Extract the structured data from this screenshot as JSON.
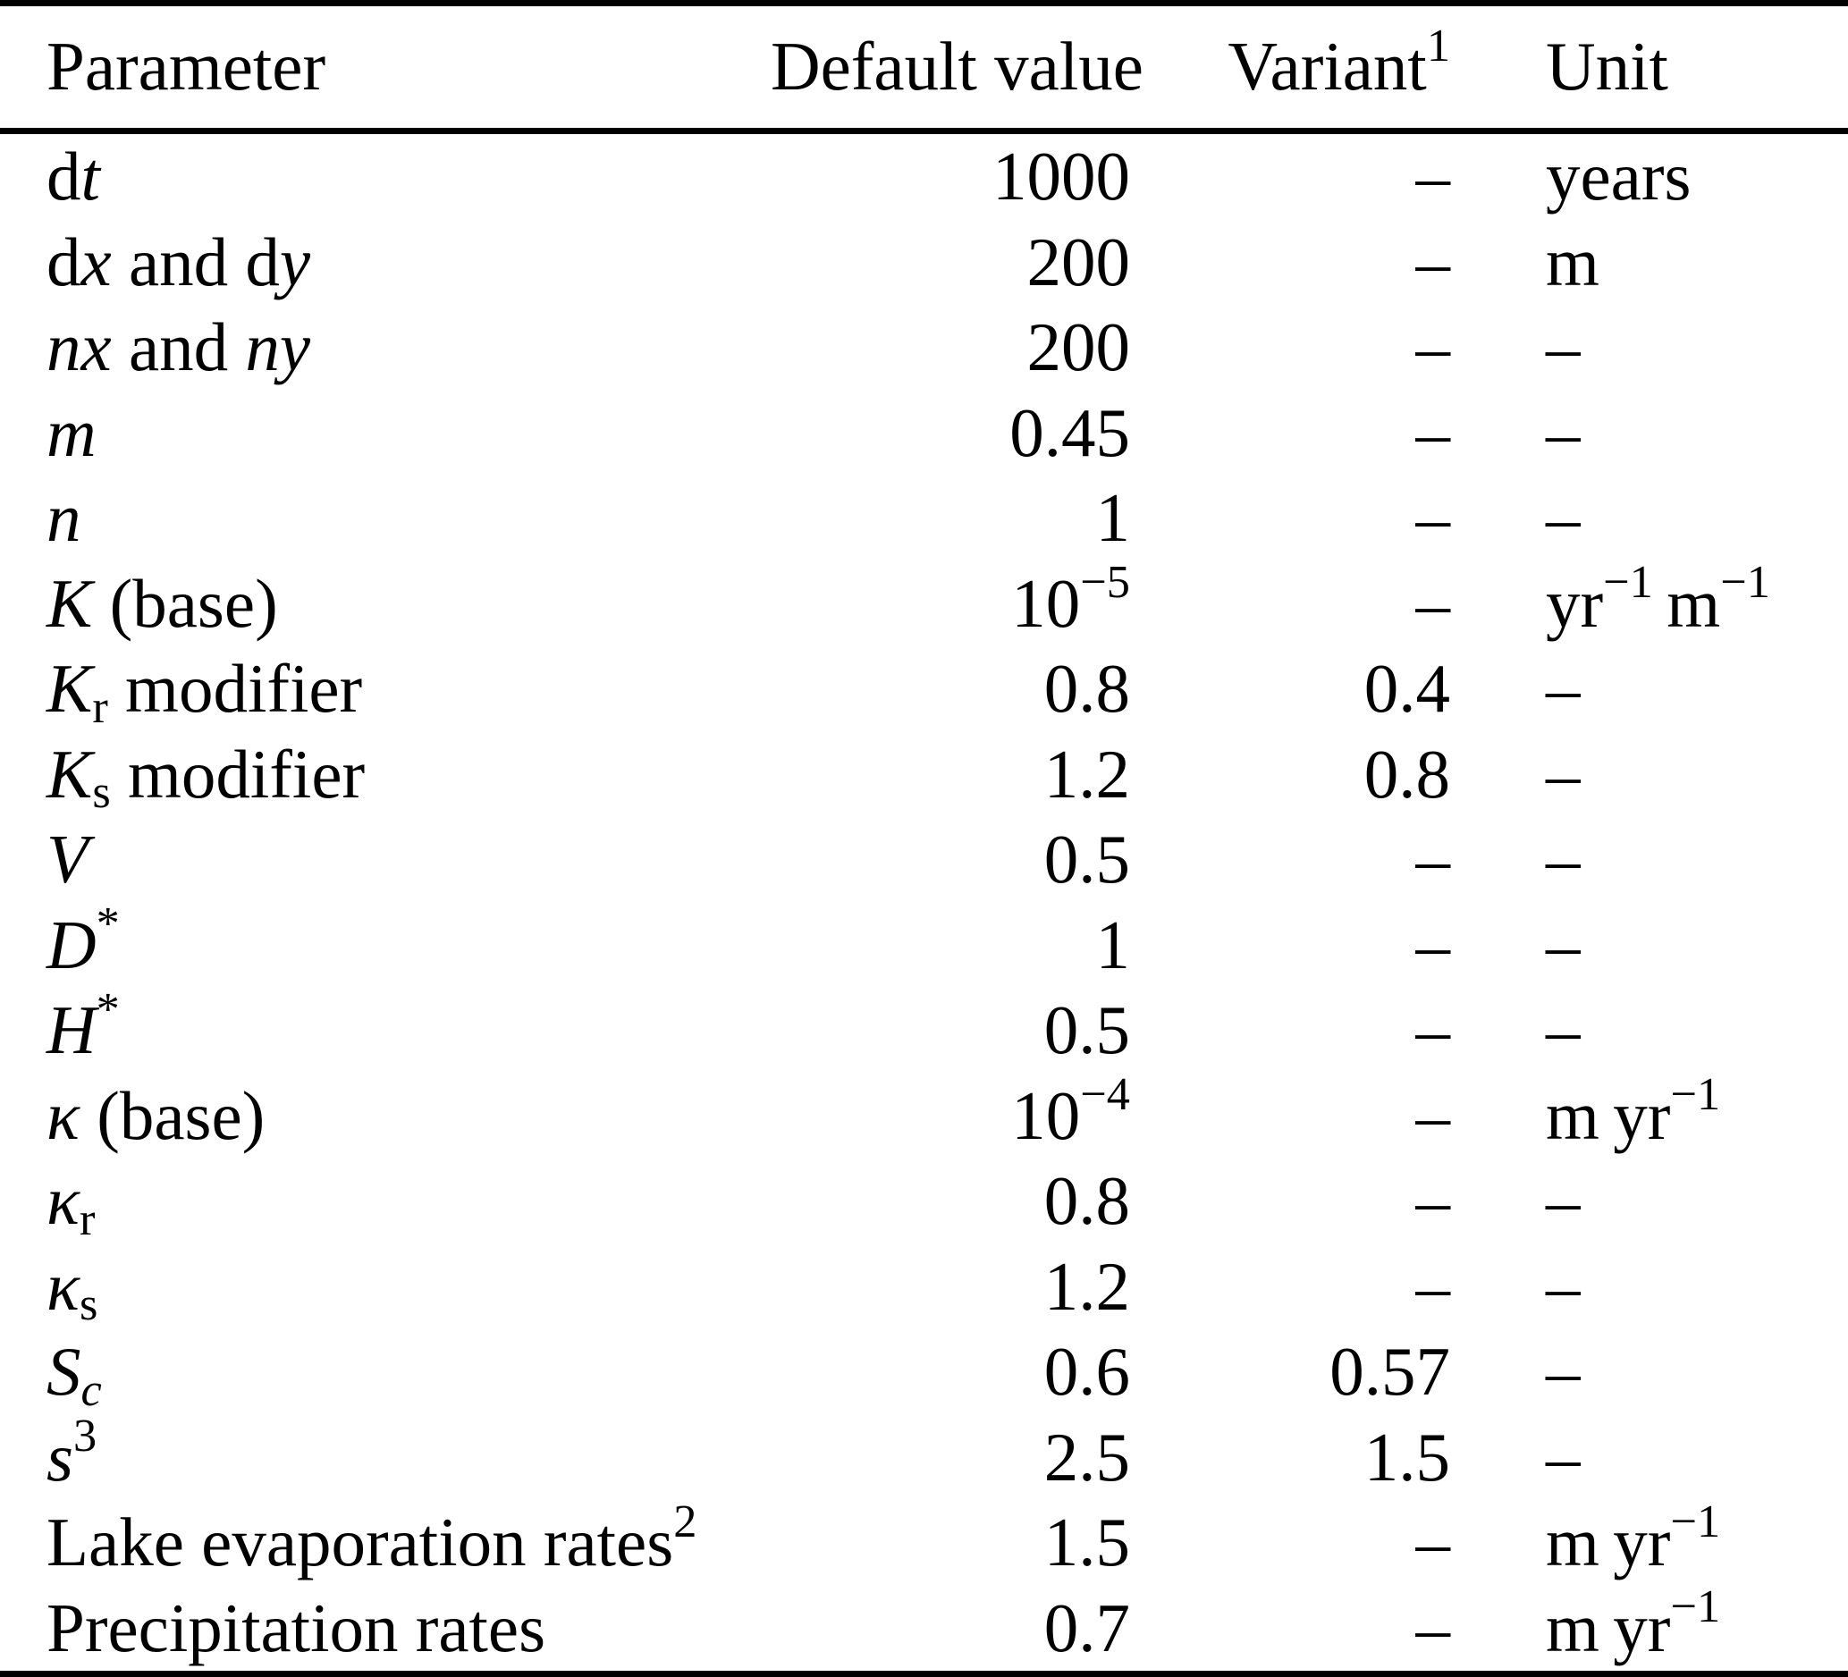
{
  "colors": {
    "text": "#000000",
    "rule": "#000000",
    "background": "#ffffff"
  },
  "table": {
    "header": {
      "parameter": "Parameter",
      "default_value": "Default value",
      "variant": "Variant",
      "variant_footnote": "1",
      "unit": "Unit"
    },
    "rows": [
      {
        "name": "dt",
        "cells": [
          [
            {
              "t": "d"
            },
            {
              "t": "t",
              "s": "i"
            }
          ],
          [
            {
              "t": "1000"
            }
          ],
          [
            {
              "t": "–"
            }
          ],
          [
            {
              "t": "years"
            }
          ]
        ]
      },
      {
        "name": "dx and dy",
        "cells": [
          [
            {
              "t": "d"
            },
            {
              "t": "x",
              "s": "i"
            },
            {
              "t": " and "
            },
            {
              "t": "d"
            },
            {
              "t": "y",
              "s": "i"
            }
          ],
          [
            {
              "t": "200"
            }
          ],
          [
            {
              "t": "–"
            }
          ],
          [
            {
              "t": "m"
            }
          ]
        ]
      },
      {
        "name": "nx and ny",
        "cells": [
          [
            {
              "t": "n",
              "s": "i"
            },
            {
              "t": "x",
              "s": "i"
            },
            {
              "t": " and "
            },
            {
              "t": "n",
              "s": "i"
            },
            {
              "t": "y",
              "s": "i"
            }
          ],
          [
            {
              "t": "200"
            }
          ],
          [
            {
              "t": "–"
            }
          ],
          [
            {
              "t": "–"
            }
          ]
        ]
      },
      {
        "name": "m",
        "cells": [
          [
            {
              "t": "m",
              "s": "i"
            }
          ],
          [
            {
              "t": "0.45"
            }
          ],
          [
            {
              "t": "–"
            }
          ],
          [
            {
              "t": "–"
            }
          ]
        ]
      },
      {
        "name": "n",
        "cells": [
          [
            {
              "t": "n",
              "s": "i"
            }
          ],
          [
            {
              "t": "1"
            }
          ],
          [
            {
              "t": "–"
            }
          ],
          [
            {
              "t": "–"
            }
          ]
        ]
      },
      {
        "name": "K (base)",
        "cells": [
          [
            {
              "t": "K",
              "s": "i"
            },
            {
              "t": " (base)"
            }
          ],
          [
            {
              "t": "10"
            },
            {
              "t": "−5",
              "s": "sup"
            }
          ],
          [
            {
              "t": "–"
            }
          ],
          [
            {
              "t": "yr"
            },
            {
              "t": "−1",
              "s": "sup"
            },
            {
              "t": " m"
            },
            {
              "t": "−1",
              "s": "sup"
            }
          ]
        ]
      },
      {
        "name": "Kr modifier",
        "cells": [
          [
            {
              "t": "K",
              "s": "i"
            },
            {
              "t": "r",
              "s": "sub"
            },
            {
              "t": " modifier"
            }
          ],
          [
            {
              "t": "0.8"
            }
          ],
          [
            {
              "t": "0.4"
            }
          ],
          [
            {
              "t": "–"
            }
          ]
        ]
      },
      {
        "name": "Ks modifier",
        "cells": [
          [
            {
              "t": "K",
              "s": "i"
            },
            {
              "t": "s",
              "s": "sub"
            },
            {
              "t": " modifier"
            }
          ],
          [
            {
              "t": "1.2"
            }
          ],
          [
            {
              "t": "0.8"
            }
          ],
          [
            {
              "t": "–"
            }
          ]
        ]
      },
      {
        "name": "V",
        "cells": [
          [
            {
              "t": "V",
              "s": "i"
            }
          ],
          [
            {
              "t": "0.5"
            }
          ],
          [
            {
              "t": "–"
            }
          ],
          [
            {
              "t": "–"
            }
          ]
        ]
      },
      {
        "name": "D*",
        "cells": [
          [
            {
              "t": "D",
              "s": "i"
            },
            {
              "t": "*",
              "s": "sup"
            }
          ],
          [
            {
              "t": "1"
            }
          ],
          [
            {
              "t": "–"
            }
          ],
          [
            {
              "t": "–"
            }
          ]
        ]
      },
      {
        "name": "H*",
        "cells": [
          [
            {
              "t": "H",
              "s": "i"
            },
            {
              "t": "*",
              "s": "sup"
            }
          ],
          [
            {
              "t": "0.5"
            }
          ],
          [
            {
              "t": "–"
            }
          ],
          [
            {
              "t": "–"
            }
          ]
        ]
      },
      {
        "name": "kappa (base)",
        "cells": [
          [
            {
              "t": "κ",
              "s": "i"
            },
            {
              "t": " (base)"
            }
          ],
          [
            {
              "t": "10"
            },
            {
              "t": "−4",
              "s": "sup"
            }
          ],
          [
            {
              "t": "–"
            }
          ],
          [
            {
              "t": "m yr"
            },
            {
              "t": "−1",
              "s": "sup"
            }
          ]
        ]
      },
      {
        "name": "kappa r",
        "cells": [
          [
            {
              "t": "κ",
              "s": "i"
            },
            {
              "t": "r",
              "s": "sub"
            }
          ],
          [
            {
              "t": "0.8"
            }
          ],
          [
            {
              "t": "–"
            }
          ],
          [
            {
              "t": "–"
            }
          ]
        ]
      },
      {
        "name": "kappa s",
        "cells": [
          [
            {
              "t": "κ",
              "s": "i"
            },
            {
              "t": "s",
              "s": "sub"
            }
          ],
          [
            {
              "t": "1.2"
            }
          ],
          [
            {
              "t": "–"
            }
          ],
          [
            {
              "t": "–"
            }
          ]
        ]
      },
      {
        "name": "Sc",
        "cells": [
          [
            {
              "t": "S",
              "s": "i"
            },
            {
              "t": "c",
              "s": "subi"
            }
          ],
          [
            {
              "t": "0.6"
            }
          ],
          [
            {
              "t": "0.57"
            }
          ],
          [
            {
              "t": "–"
            }
          ]
        ]
      },
      {
        "name": "s3",
        "cells": [
          [
            {
              "t": "s",
              "s": "i"
            },
            {
              "t": "3",
              "s": "sup"
            }
          ],
          [
            {
              "t": "2.5"
            }
          ],
          [
            {
              "t": "1.5"
            }
          ],
          [
            {
              "t": "–"
            }
          ]
        ]
      },
      {
        "name": "Lake evaporation rates",
        "cells": [
          [
            {
              "t": "Lake evaporation rates"
            },
            {
              "t": "2",
              "s": "sup"
            }
          ],
          [
            {
              "t": "1.5"
            }
          ],
          [
            {
              "t": "–"
            }
          ],
          [
            {
              "t": "m yr"
            },
            {
              "t": "−1",
              "s": "sup"
            }
          ]
        ]
      },
      {
        "name": "Precipitation rates",
        "cells": [
          [
            {
              "t": "Precipitation rates"
            }
          ],
          [
            {
              "t": "0.7"
            }
          ],
          [
            {
              "t": "–"
            }
          ],
          [
            {
              "t": "m yr"
            },
            {
              "t": "−1",
              "s": "sup"
            }
          ]
        ]
      }
    ]
  }
}
